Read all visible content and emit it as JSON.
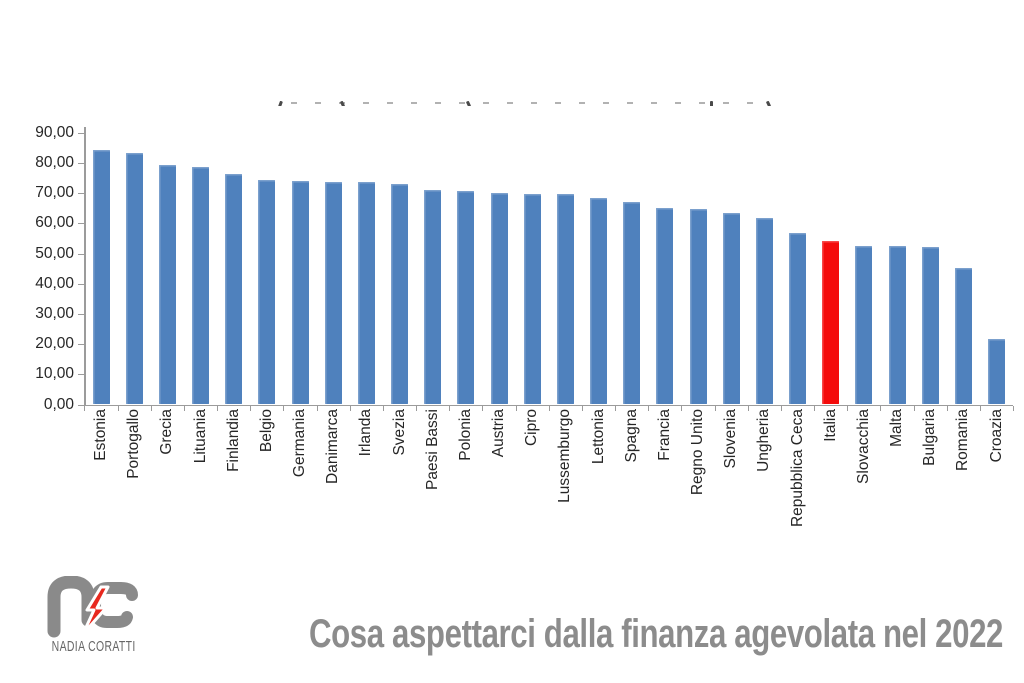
{
  "chart_data": {
    "type": "bar",
    "categories": [
      "Estonia",
      "Portogallo",
      "Grecia",
      "Lituania",
      "Finlandia",
      "Belgio",
      "Germania",
      "Danimarca",
      "Irlanda",
      "Svezia",
      "Paesi Bassi",
      "Polonia",
      "Austria",
      "Cipro",
      "Lussemburgo",
      "Lettonia",
      "Spagna",
      "Francia",
      "Regno Unito",
      "Slovenia",
      "Ungheria",
      "Repubblica Ceca",
      "Italia",
      "Slovacchia",
      "Malta",
      "Bulgaria",
      "Romania",
      "Croazia"
    ],
    "values": [
      84.4,
      83.4,
      79.4,
      78.8,
      76.4,
      74.4,
      73.9,
      73.7,
      73.6,
      73.0,
      70.9,
      70.6,
      70.1,
      69.8,
      69.6,
      68.4,
      67.0,
      65.2,
      64.6,
      63.5,
      61.7,
      56.8,
      54.1,
      52.5,
      52.4,
      52.0,
      45.2,
      21.7
    ],
    "highlight_category": "Italia",
    "bar_color": "#4f81bd",
    "highlight_color": "#f40b0b",
    "ylim": [
      0,
      90
    ],
    "ytick_step": 10,
    "ytick_labels": [
      "0,00",
      "10,00",
      "20,00",
      "30,00",
      "40,00",
      "50,00",
      "60,00",
      "70,00",
      "80,00",
      "90,00"
    ],
    "grid": false,
    "legend": false,
    "x_labels_rotated_degrees": 90,
    "axis_color": "#9b9b9b",
    "tick_label_color": "#262626",
    "title": ""
  },
  "footer": {
    "logo_monogram": "nc",
    "logo_name": "NADIA CORATTI",
    "logo_gray": "#8a8a8a",
    "logo_bolt_red": "#e8281e",
    "caption": "Cosa aspettarci dalla finanza agevolata nel 2022",
    "caption_color": "#8c8c8c"
  }
}
